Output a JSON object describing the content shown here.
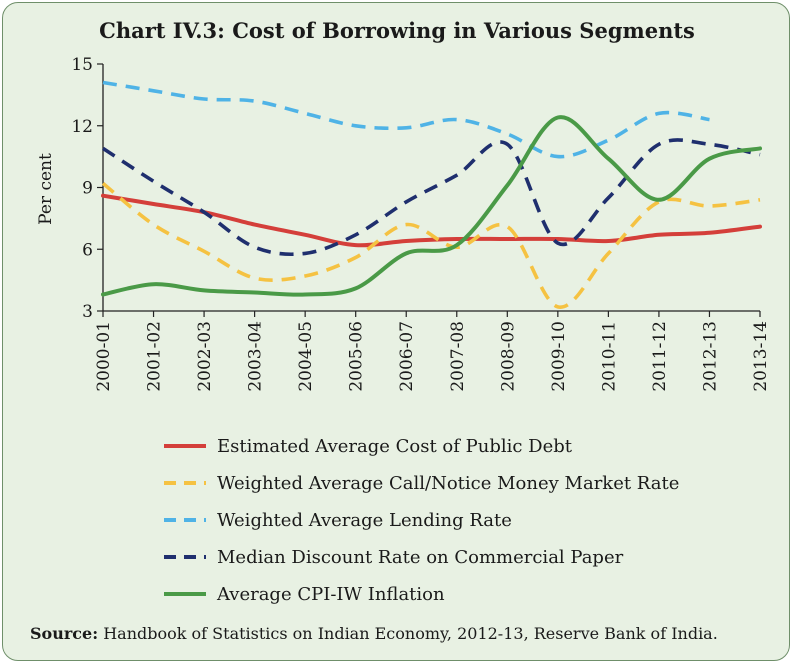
{
  "chart_data": {
    "type": "line",
    "title": "Chart  IV.3: Cost of Borrowing in Various Segments",
    "ylabel": "Per cent",
    "xlabel": "",
    "ylim": [
      3,
      15
    ],
    "yticks": [
      3,
      6,
      9,
      12,
      15
    ],
    "categories": [
      "2000-01",
      "2001-02",
      "2002-03",
      "2003-04",
      "2004-05",
      "2005-06",
      "2006-07",
      "2007-08",
      "2008-09",
      "2009-10",
      "2010-11",
      "2011-12",
      "2012-13",
      "2013-14"
    ],
    "grid": false,
    "legend_position": "bottom",
    "series": [
      {
        "name": "Estimated Average Cost of Public Debt",
        "color": "#d43f3a",
        "style": "solid",
        "values": [
          8.6,
          8.2,
          7.8,
          7.2,
          6.7,
          6.2,
          6.4,
          6.5,
          6.5,
          6.5,
          6.4,
          6.7,
          6.8,
          7.1
        ]
      },
      {
        "name": "Weighted Average Call/Notice Money Market Rate",
        "color": "#f5c242",
        "style": "dashed",
        "values": [
          9.2,
          7.2,
          5.9,
          4.6,
          4.7,
          5.6,
          7.2,
          6.1,
          7.1,
          3.2,
          5.8,
          8.3,
          8.1,
          8.4
        ]
      },
      {
        "name": "Weighted Average Lending Rate",
        "color": "#4fb3e6",
        "style": "dashed",
        "values": [
          14.1,
          13.7,
          13.3,
          13.2,
          12.6,
          12.0,
          11.9,
          12.3,
          11.6,
          10.5,
          11.3,
          12.6,
          12.3,
          null
        ]
      },
      {
        "name": "Median Discount Rate on Commercial Paper",
        "color": "#1f2f6e",
        "style": "dashed",
        "values": [
          10.9,
          9.3,
          7.8,
          6.1,
          5.8,
          6.7,
          8.3,
          9.6,
          11.1,
          6.3,
          8.5,
          11.1,
          11.1,
          10.6
        ]
      },
      {
        "name": "Average CPI-IW Inflation",
        "color": "#4a9a47",
        "style": "solid",
        "values": [
          3.8,
          4.3,
          4.0,
          3.9,
          3.8,
          4.1,
          5.8,
          6.2,
          9.1,
          12.4,
          10.4,
          8.4,
          10.4,
          10.9
        ]
      }
    ],
    "source_label": "Source:",
    "source_text": " Handbook of Statistics on Indian Economy, 2012-13, Reserve Bank of India."
  }
}
